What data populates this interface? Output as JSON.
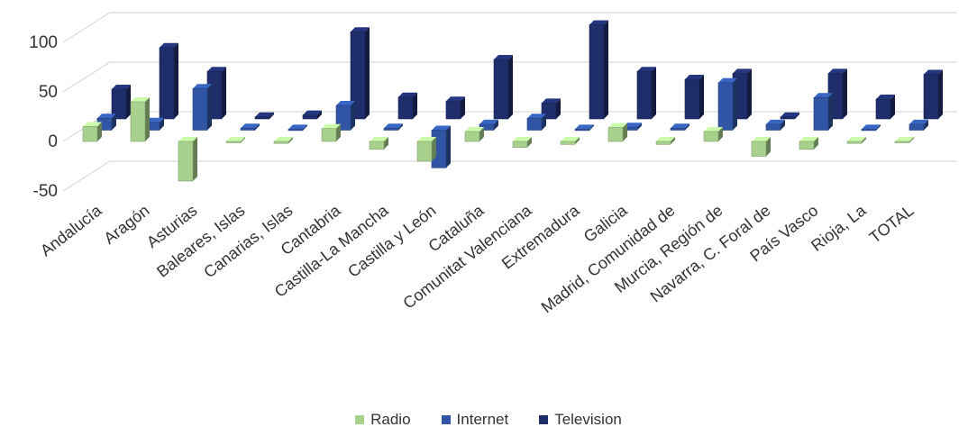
{
  "chart_data": {
    "type": "bar",
    "title": "",
    "xlabel": "",
    "ylabel": "",
    "ylim": [
      -50,
      100
    ],
    "yticks": [
      -50,
      0,
      50,
      100
    ],
    "grid": true,
    "legend_position": "bottom",
    "categories": [
      "Andalucía",
      "Aragón",
      "Asturias",
      "Baleares, Islas",
      "Canarias, Islas",
      "Cantabria",
      "Castilla-La Mancha",
      "Castilla y León",
      "Cataluña",
      "Comunitat Valenciana",
      "Extremadura",
      "Galicia",
      "Madrid, Comunidad de",
      "Murcia, Región de",
      "Navarra, C. Foral de",
      "País Vasco",
      "Rioja, La",
      "TOTAL"
    ],
    "series": [
      {
        "name": "Radio",
        "color": "#a9d18e",
        "values": [
          15,
          40,
          -40,
          0,
          -2,
          13,
          -8,
          -20,
          10,
          -6,
          -3,
          14,
          -3,
          10,
          -15,
          -8,
          -2,
          -1
        ]
      },
      {
        "name": "Internet",
        "color": "#2f55a4",
        "values": [
          12,
          8,
          42,
          2,
          1,
          25,
          2,
          -38,
          6,
          12,
          1,
          3,
          2,
          48,
          6,
          33,
          1,
          6
        ]
      },
      {
        "name": "Television",
        "color": "#1f2d6b",
        "values": [
          30,
          72,
          48,
          2,
          4,
          88,
          22,
          18,
          60,
          16,
          95,
          48,
          40,
          46,
          2,
          46,
          20,
          45
        ]
      }
    ]
  }
}
